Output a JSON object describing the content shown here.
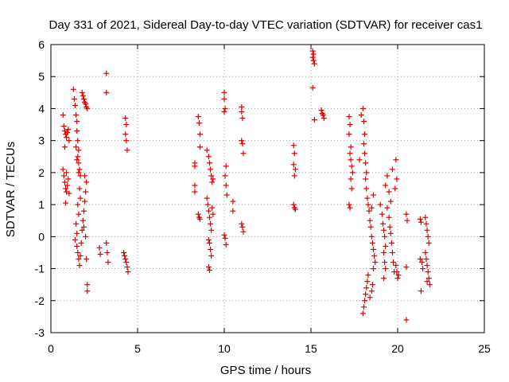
{
  "chart_data": {
    "type": "scatter",
    "title": "Day 331 of 2021, Sidereal Day-to-day VTEC variation (SDTVAR) for receiver cas1",
    "xlabel": "GPS time / hours",
    "ylabel": "SDTVAR / TECUs",
    "xlim": [
      0,
      25
    ],
    "ylim": [
      -3,
      6
    ],
    "xticks": [
      "0",
      "5",
      "10",
      "15",
      "20",
      "25"
    ],
    "yticks": [
      "-3",
      "-2",
      "-1",
      "0",
      "1",
      "2",
      "3",
      "4",
      "5",
      "6"
    ],
    "grid": true,
    "marker": "plus",
    "color": "#e00000",
    "series": [
      {
        "name": "cas1",
        "points": [
          [
            0.7,
            3.8
          ],
          [
            0.75,
            3.45
          ],
          [
            0.8,
            3.3
          ],
          [
            0.85,
            3.2
          ],
          [
            0.9,
            3.1
          ],
          [
            0.95,
            3.25
          ],
          [
            1.0,
            3.35
          ],
          [
            1.05,
            3.0
          ],
          [
            0.8,
            2.8
          ],
          [
            0.7,
            2.1
          ],
          [
            0.75,
            1.9
          ],
          [
            0.8,
            1.7
          ],
          [
            0.85,
            1.5
          ],
          [
            0.9,
            1.4
          ],
          [
            0.95,
            1.6
          ],
          [
            1.0,
            1.8
          ],
          [
            1.05,
            1.35
          ],
          [
            0.85,
            1.05
          ],
          [
            0.9,
            2.0
          ],
          [
            1.3,
            4.6
          ],
          [
            1.35,
            4.3
          ],
          [
            1.4,
            4.1
          ],
          [
            1.45,
            3.8
          ],
          [
            1.5,
            3.6
          ],
          [
            1.5,
            3.3
          ],
          [
            1.55,
            3.0
          ],
          [
            1.6,
            2.7
          ],
          [
            1.55,
            2.5
          ],
          [
            1.6,
            2.3
          ],
          [
            1.65,
            2.1
          ],
          [
            1.7,
            1.9
          ],
          [
            1.45,
            2.8
          ],
          [
            1.5,
            2.4
          ],
          [
            1.6,
            2.0
          ],
          [
            1.65,
            1.5
          ],
          [
            1.7,
            1.2
          ],
          [
            1.55,
            1.0
          ],
          [
            1.6,
            0.7
          ],
          [
            1.45,
            0.4
          ],
          [
            1.5,
            0.1
          ],
          [
            1.4,
            -0.1
          ],
          [
            1.5,
            -0.3
          ],
          [
            1.55,
            -0.5
          ],
          [
            1.6,
            -0.7
          ],
          [
            1.65,
            -0.9
          ],
          [
            1.7,
            -0.6
          ],
          [
            1.75,
            -0.2
          ],
          [
            1.8,
            0.2
          ],
          [
            1.85,
            0.5
          ],
          [
            1.9,
            0.8
          ],
          [
            1.95,
            1.1
          ],
          [
            2.0,
            1.4
          ],
          [
            2.05,
            1.7
          ],
          [
            1.9,
            0.3
          ],
          [
            2.0,
            0.0
          ],
          [
            2.05,
            -0.7
          ],
          [
            1.95,
            1.9
          ],
          [
            1.8,
            4.5
          ],
          [
            1.85,
            4.4
          ],
          [
            1.9,
            4.3
          ],
          [
            1.95,
            4.2
          ],
          [
            2.0,
            4.15
          ],
          [
            2.05,
            4.05
          ],
          [
            2.1,
            4.0
          ],
          [
            2.1,
            -1.5
          ],
          [
            2.1,
            -1.7
          ],
          [
            3.2,
            5.1
          ],
          [
            3.2,
            4.5
          ],
          [
            2.8,
            -0.35
          ],
          [
            2.85,
            -0.55
          ],
          [
            3.2,
            -0.2
          ],
          [
            3.25,
            -0.5
          ],
          [
            3.3,
            -0.8
          ],
          [
            4.3,
            3.7
          ],
          [
            4.35,
            3.5
          ],
          [
            4.3,
            3.2
          ],
          [
            4.35,
            3.0
          ],
          [
            4.4,
            2.7
          ],
          [
            4.2,
            -0.5
          ],
          [
            4.25,
            -0.6
          ],
          [
            4.3,
            -0.7
          ],
          [
            4.35,
            -0.8
          ],
          [
            4.4,
            -0.95
          ],
          [
            4.45,
            -1.1
          ],
          [
            8.3,
            2.3
          ],
          [
            8.3,
            2.2
          ],
          [
            8.3,
            1.6
          ],
          [
            8.3,
            1.4
          ],
          [
            8.5,
            3.75
          ],
          [
            8.55,
            3.55
          ],
          [
            8.6,
            3.2
          ],
          [
            8.6,
            2.8
          ],
          [
            8.5,
            0.7
          ],
          [
            8.55,
            0.6
          ],
          [
            8.6,
            0.55
          ],
          [
            9.0,
            2.7
          ],
          [
            9.1,
            2.5
          ],
          [
            9.15,
            2.3
          ],
          [
            9.2,
            2.1
          ],
          [
            9.25,
            1.9
          ],
          [
            9.3,
            1.7
          ],
          [
            9.35,
            1.8
          ],
          [
            9.0,
            1.2
          ],
          [
            9.05,
            1.0
          ],
          [
            9.1,
            0.8
          ],
          [
            9.15,
            0.6
          ],
          [
            9.2,
            0.4
          ],
          [
            9.25,
            0.2
          ],
          [
            9.3,
            0.9
          ],
          [
            9.35,
            0.7
          ],
          [
            9.1,
            -0.1
          ],
          [
            9.15,
            -0.2
          ],
          [
            9.2,
            -0.4
          ],
          [
            9.25,
            -0.6
          ],
          [
            9.1,
            -0.95
          ],
          [
            9.15,
            -1.05
          ],
          [
            10.0,
            4.5
          ],
          [
            10.0,
            4.3
          ],
          [
            10.0,
            3.9
          ],
          [
            10.05,
            4.0
          ],
          [
            10.1,
            2.2
          ],
          [
            10.05,
            1.9
          ],
          [
            10.1,
            1.6
          ],
          [
            10.15,
            1.3
          ],
          [
            10.0,
            0.05
          ],
          [
            10.05,
            -0.05
          ],
          [
            10.1,
            -0.25
          ],
          [
            10.5,
            0.8
          ],
          [
            10.5,
            1.1
          ],
          [
            11.0,
            4.05
          ],
          [
            11.0,
            3.9
          ],
          [
            11.05,
            3.7
          ],
          [
            11.0,
            3.0
          ],
          [
            11.05,
            2.9
          ],
          [
            11.1,
            2.6
          ],
          [
            11.0,
            0.4
          ],
          [
            11.05,
            0.3
          ],
          [
            11.1,
            0.15
          ],
          [
            14.0,
            2.85
          ],
          [
            14.05,
            2.6
          ],
          [
            14.0,
            2.25
          ],
          [
            14.1,
            2.1
          ],
          [
            14.05,
            1.9
          ],
          [
            14.0,
            1.0
          ],
          [
            14.05,
            0.9
          ],
          [
            14.1,
            0.85
          ],
          [
            15.1,
            5.8
          ],
          [
            15.15,
            5.7
          ],
          [
            15.1,
            5.6
          ],
          [
            15.15,
            5.5
          ],
          [
            15.2,
            5.4
          ],
          [
            15.1,
            4.65
          ],
          [
            15.2,
            3.65
          ],
          [
            15.6,
            3.95
          ],
          [
            15.65,
            3.85
          ],
          [
            15.7,
            3.8
          ],
          [
            15.75,
            3.7
          ],
          [
            17.2,
            3.75
          ],
          [
            17.25,
            3.5
          ],
          [
            17.2,
            3.2
          ],
          [
            17.3,
            2.8
          ],
          [
            17.25,
            2.6
          ],
          [
            17.3,
            2.4
          ],
          [
            17.35,
            2.2
          ],
          [
            17.4,
            2.0
          ],
          [
            17.3,
            1.8
          ],
          [
            17.35,
            1.5
          ],
          [
            17.2,
            1.0
          ],
          [
            17.25,
            0.9
          ],
          [
            17.8,
            2.4
          ],
          [
            17.9,
            3.8
          ],
          [
            18.0,
            4.0
          ],
          [
            18.05,
            3.6
          ],
          [
            18.1,
            3.2
          ],
          [
            18.05,
            2.9
          ],
          [
            18.1,
            2.6
          ],
          [
            18.15,
            2.3
          ],
          [
            18.2,
            2.0
          ],
          [
            18.15,
            1.8
          ],
          [
            18.2,
            1.5
          ],
          [
            18.25,
            1.2
          ],
          [
            18.3,
            1.0
          ],
          [
            18.35,
            0.8
          ],
          [
            18.4,
            0.5
          ],
          [
            18.45,
            0.3
          ],
          [
            18.5,
            0.0
          ],
          [
            18.55,
            -0.2
          ],
          [
            18.6,
            -0.4
          ],
          [
            18.65,
            -0.6
          ],
          [
            18.7,
            -0.8
          ],
          [
            18.0,
            -2.4
          ],
          [
            18.05,
            -2.2
          ],
          [
            18.1,
            -2.0
          ],
          [
            18.15,
            -1.8
          ],
          [
            18.2,
            -1.6
          ],
          [
            18.25,
            -1.4
          ],
          [
            18.3,
            -1.2
          ],
          [
            18.4,
            -1.9
          ],
          [
            18.5,
            -1.7
          ],
          [
            18.55,
            -1.5
          ],
          [
            18.6,
            -1.0
          ],
          [
            18.5,
            0.9
          ],
          [
            18.6,
            1.3
          ],
          [
            19.0,
            1.0
          ],
          [
            19.1,
            0.7
          ],
          [
            19.15,
            0.4
          ],
          [
            19.2,
            0.2
          ],
          [
            19.25,
            0.0
          ],
          [
            19.3,
            -0.3
          ],
          [
            19.2,
            -0.5
          ],
          [
            19.25,
            -0.8
          ],
          [
            19.3,
            -1.0
          ],
          [
            19.2,
            -1.3
          ],
          [
            19.4,
            0.9
          ],
          [
            19.5,
            0.6
          ],
          [
            19.55,
            0.3
          ],
          [
            19.6,
            0.1
          ],
          [
            19.65,
            -0.2
          ],
          [
            19.7,
            -0.5
          ],
          [
            19.75,
            -0.8
          ],
          [
            19.8,
            -1.1
          ],
          [
            19.3,
            1.6
          ],
          [
            19.4,
            1.9
          ],
          [
            19.5,
            1.4
          ],
          [
            19.6,
            1.1
          ],
          [
            19.7,
            2.1
          ],
          [
            19.9,
            2.4
          ],
          [
            19.95,
            1.8
          ],
          [
            19.85,
            1.5
          ],
          [
            19.9,
            -0.9
          ],
          [
            19.95,
            -1.1
          ],
          [
            20.0,
            -1.3
          ],
          [
            20.05,
            -1.2
          ],
          [
            20.5,
            -2.6
          ],
          [
            20.5,
            -0.95
          ],
          [
            20.5,
            0.7
          ],
          [
            20.55,
            0.5
          ],
          [
            21.3,
            0.55
          ],
          [
            21.35,
            0.45
          ],
          [
            21.3,
            -0.7
          ],
          [
            21.4,
            -0.8
          ],
          [
            21.45,
            -1.0
          ],
          [
            21.35,
            -1.7
          ],
          [
            21.6,
            0.6
          ],
          [
            21.65,
            0.4
          ],
          [
            21.7,
            0.2
          ],
          [
            21.75,
            0.0
          ],
          [
            21.8,
            -0.2
          ],
          [
            21.6,
            -0.5
          ],
          [
            21.65,
            -0.7
          ],
          [
            21.7,
            -0.9
          ],
          [
            21.75,
            -1.1
          ],
          [
            21.8,
            -1.3
          ],
          [
            21.85,
            -1.5
          ],
          [
            21.7,
            -1.4
          ]
        ]
      }
    ]
  }
}
